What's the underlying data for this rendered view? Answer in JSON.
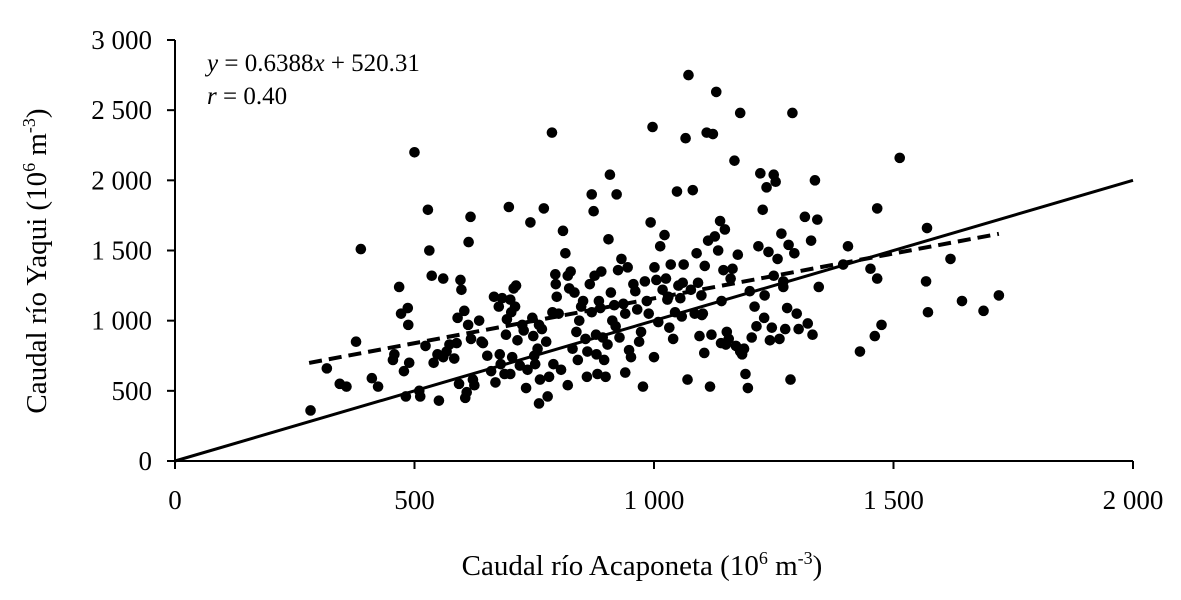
{
  "chart_data": {
    "type": "scatter",
    "title": "",
    "xlabel": "Caudal río Acaponeta (10⁶ m⁻³)",
    "xlabel_base": "Caudal río Acaponeta (10",
    "xlabel_sup1": "6",
    "xlabel_mid": " m",
    "xlabel_sup2": "-3",
    "xlabel_end": ")",
    "ylabel": "Caudal río Yaqui (10⁶ m⁻³)",
    "ylabel_base": "Caudal río Yaqui (10",
    "ylabel_sup1": "6",
    "ylabel_mid": " m",
    "ylabel_sup2": "-3",
    "ylabel_end": ")",
    "xlim": [
      0,
      2000
    ],
    "ylim": [
      0,
      3000
    ],
    "x_ticks": [
      0,
      500,
      1000,
      1500,
      2000
    ],
    "x_tick_labels": [
      "0",
      "500",
      "1 000",
      "1 500",
      "2 000"
    ],
    "y_ticks": [
      0,
      500,
      1000,
      1500,
      2000,
      2500,
      3000
    ],
    "y_tick_labels": [
      "0",
      "500",
      "1 000",
      "1 500",
      "2 000",
      "2 500",
      "3 000"
    ],
    "grid": false,
    "legend": null,
    "annotations": {
      "equation": "y = 0.6388x + 520.31",
      "equation_y": "y",
      "equation_rest": " = 0.6388",
      "equation_x": "x",
      "equation_tail": " + 520.31",
      "r_label": "r",
      "r_rest": " = 0.40"
    },
    "lines": [
      {
        "name": "identity (1:1)",
        "style": "solid",
        "x": [
          0,
          2000
        ],
        "y": [
          0,
          2000
        ]
      },
      {
        "name": "regression y = 0.6388x + 520.31",
        "style": "dashed",
        "x": [
          280,
          1720
        ],
        "y": [
          699,
          1619
        ]
      }
    ],
    "series": [
      {
        "name": "observations",
        "marker": "circle",
        "points": [
          [
            283,
            360
          ],
          [
            317,
            660
          ],
          [
            344,
            550
          ],
          [
            358,
            530
          ],
          [
            388,
            1510
          ],
          [
            378,
            850
          ],
          [
            411,
            590
          ],
          [
            424,
            530
          ],
          [
            455,
            720
          ],
          [
            458,
            760
          ],
          [
            468,
            1240
          ],
          [
            472,
            1050
          ],
          [
            478,
            640
          ],
          [
            482,
            460
          ],
          [
            486,
            1090
          ],
          [
            487,
            970
          ],
          [
            489,
            700
          ],
          [
            500,
            2200
          ],
          [
            510,
            500
          ],
          [
            512,
            460
          ],
          [
            523,
            820
          ],
          [
            528,
            1790
          ],
          [
            531,
            1500
          ],
          [
            536,
            1320
          ],
          [
            540,
            700
          ],
          [
            548,
            760
          ],
          [
            551,
            430
          ],
          [
            560,
            1300
          ],
          [
            567,
            780
          ],
          [
            573,
            830
          ],
          [
            583,
            730
          ],
          [
            588,
            840
          ],
          [
            593,
            550
          ],
          [
            596,
            1290
          ],
          [
            598,
            1220
          ],
          [
            604,
            1070
          ],
          [
            606,
            450
          ],
          [
            609,
            490
          ],
          [
            612,
            970
          ],
          [
            613,
            1560
          ],
          [
            617,
            1740
          ],
          [
            618,
            870
          ],
          [
            622,
            580
          ],
          [
            625,
            540
          ],
          [
            635,
            1000
          ],
          [
            643,
            840
          ],
          [
            652,
            750
          ],
          [
            660,
            640
          ],
          [
            666,
            1170
          ],
          [
            669,
            560
          ],
          [
            676,
            1100
          ],
          [
            678,
            760
          ],
          [
            680,
            690
          ],
          [
            683,
            1160
          ],
          [
            688,
            620
          ],
          [
            691,
            900
          ],
          [
            693,
            1010
          ],
          [
            697,
            1810
          ],
          [
            700,
            1150
          ],
          [
            702,
            1060
          ],
          [
            704,
            740
          ],
          [
            707,
            1230
          ],
          [
            710,
            1100
          ],
          [
            712,
            1250
          ],
          [
            715,
            860
          ],
          [
            720,
            680
          ],
          [
            725,
            970
          ],
          [
            728,
            930
          ],
          [
            733,
            520
          ],
          [
            736,
            650
          ],
          [
            742,
            1700
          ],
          [
            746,
            1020
          ],
          [
            748,
            890
          ],
          [
            752,
            690
          ],
          [
            757,
            800
          ],
          [
            760,
            410
          ],
          [
            762,
            580
          ],
          [
            766,
            940
          ],
          [
            770,
            1800
          ],
          [
            775,
            850
          ],
          [
            778,
            460
          ],
          [
            781,
            600
          ],
          [
            787,
            2340
          ],
          [
            788,
            1060
          ],
          [
            790,
            690
          ],
          [
            794,
            1330
          ],
          [
            795,
            1260
          ],
          [
            797,
            1170
          ],
          [
            801,
            1050
          ],
          [
            806,
            650
          ],
          [
            810,
            1640
          ],
          [
            815,
            1480
          ],
          [
            820,
            540
          ],
          [
            823,
            1230
          ],
          [
            826,
            1350
          ],
          [
            830,
            800
          ],
          [
            834,
            1200
          ],
          [
            838,
            920
          ],
          [
            841,
            720
          ],
          [
            844,
            1000
          ],
          [
            848,
            1100
          ],
          [
            852,
            1140
          ],
          [
            857,
            870
          ],
          [
            861,
            780
          ],
          [
            866,
            1260
          ],
          [
            870,
            1900
          ],
          [
            874,
            1780
          ],
          [
            876,
            1320
          ],
          [
            879,
            900
          ],
          [
            882,
            620
          ],
          [
            885,
            1140
          ],
          [
            888,
            1090
          ],
          [
            890,
            1350
          ],
          [
            893,
            880
          ],
          [
            896,
            720
          ],
          [
            899,
            600
          ],
          [
            903,
            830
          ],
          [
            905,
            1580
          ],
          [
            908,
            2040
          ],
          [
            910,
            1200
          ],
          [
            913,
            1000
          ],
          [
            917,
            1110
          ],
          [
            920,
            960
          ],
          [
            922,
            1900
          ],
          [
            925,
            1360
          ],
          [
            928,
            880
          ],
          [
            932,
            1440
          ],
          [
            936,
            1120
          ],
          [
            940,
            1050
          ],
          [
            945,
            1380
          ],
          [
            948,
            790
          ],
          [
            952,
            740
          ],
          [
            957,
            1260
          ],
          [
            961,
            1210
          ],
          [
            965,
            1080
          ],
          [
            969,
            850
          ],
          [
            973,
            920
          ],
          [
            977,
            530
          ],
          [
            981,
            1280
          ],
          [
            985,
            1140
          ],
          [
            989,
            1050
          ],
          [
            993,
            1700
          ],
          [
            997,
            2380
          ],
          [
            1001,
            1380
          ],
          [
            1005,
            1290
          ],
          [
            1009,
            990
          ],
          [
            1013,
            1530
          ],
          [
            1018,
            1220
          ],
          [
            1022,
            1610
          ],
          [
            1025,
            1300
          ],
          [
            1028,
            1150
          ],
          [
            1032,
            950
          ],
          [
            1035,
            1400
          ],
          [
            1040,
            870
          ],
          [
            1044,
            1060
          ],
          [
            1048,
            1920
          ],
          [
            1051,
            1250
          ],
          [
            1055,
            1160
          ],
          [
            1058,
            1030
          ],
          [
            1062,
            1400
          ],
          [
            1066,
            2300
          ],
          [
            1070,
            580
          ],
          [
            1072,
            2750
          ],
          [
            1077,
            1220
          ],
          [
            1081,
            1930
          ],
          [
            1085,
            1050
          ],
          [
            1089,
            1480
          ],
          [
            1092,
            1270
          ],
          [
            1095,
            890
          ],
          [
            1099,
            1180
          ],
          [
            1102,
            1050
          ],
          [
            1106,
            1390
          ],
          [
            1110,
            2340
          ],
          [
            1113,
            1570
          ],
          [
            1117,
            530
          ],
          [
            1120,
            900
          ],
          [
            1123,
            2330
          ],
          [
            1127,
            1600
          ],
          [
            1130,
            2630
          ],
          [
            1134,
            1500
          ],
          [
            1138,
            1710
          ],
          [
            1141,
            1140
          ],
          [
            1145,
            1360
          ],
          [
            1148,
            1650
          ],
          [
            1152,
            920
          ],
          [
            1156,
            870
          ],
          [
            1160,
            1300
          ],
          [
            1164,
            1370
          ],
          [
            1168,
            2140
          ],
          [
            1171,
            820
          ],
          [
            1175,
            1470
          ],
          [
            1180,
            2480
          ],
          [
            1184,
            760
          ],
          [
            1188,
            800
          ],
          [
            1191,
            620
          ],
          [
            1196,
            520
          ],
          [
            1204,
            880
          ],
          [
            1210,
            1100
          ],
          [
            1214,
            960
          ],
          [
            1218,
            1530
          ],
          [
            1222,
            2050
          ],
          [
            1227,
            1790
          ],
          [
            1231,
            1180
          ],
          [
            1235,
            1950
          ],
          [
            1239,
            1490
          ],
          [
            1242,
            860
          ],
          [
            1246,
            950
          ],
          [
            1250,
            2040
          ],
          [
            1254,
            1990
          ],
          [
            1258,
            1440
          ],
          [
            1262,
            870
          ],
          [
            1266,
            1620
          ],
          [
            1270,
            1240
          ],
          [
            1274,
            940
          ],
          [
            1278,
            1090
          ],
          [
            1281,
            1540
          ],
          [
            1285,
            580
          ],
          [
            1289,
            2480
          ],
          [
            1293,
            1480
          ],
          [
            1298,
            1050
          ],
          [
            1302,
            940
          ],
          [
            1315,
            1740
          ],
          [
            1321,
            980
          ],
          [
            1328,
            1570
          ],
          [
            1331,
            900
          ],
          [
            1336,
            2000
          ],
          [
            1341,
            1720
          ],
          [
            1344,
            1240
          ],
          [
            1395,
            1400
          ],
          [
            1405,
            1530
          ],
          [
            1430,
            780
          ],
          [
            1452,
            1370
          ],
          [
            1466,
            1800
          ],
          [
            1461,
            890
          ],
          [
            1475,
            970
          ],
          [
            1466,
            1300
          ],
          [
            1513,
            2160
          ],
          [
            1570,
            1660
          ],
          [
            1572,
            1060
          ],
          [
            1568,
            1280
          ],
          [
            1619,
            1440
          ],
          [
            1643,
            1140
          ],
          [
            1688,
            1070
          ],
          [
            1720,
            1180
          ],
          [
            1105,
            770
          ],
          [
            1150,
            830
          ],
          [
            1180,
            780
          ],
          [
            1140,
            840
          ],
          [
            860,
            600
          ],
          [
            880,
            760
          ],
          [
            940,
            630
          ],
          [
            700,
            620
          ],
          [
            640,
            850
          ],
          [
            560,
            740
          ],
          [
            590,
            1020
          ],
          [
            750,
            750
          ],
          [
            760,
            970
          ],
          [
            870,
            1060
          ],
          [
            1000,
            740
          ],
          [
            1030,
            1170
          ],
          [
            1060,
            1270
          ],
          [
            1200,
            1210
          ],
          [
            1230,
            1020
          ],
          [
            1250,
            1320
          ],
          [
            1270,
            1280
          ],
          [
            1100,
            1040
          ],
          [
            820,
            1320
          ]
        ]
      }
    ]
  }
}
